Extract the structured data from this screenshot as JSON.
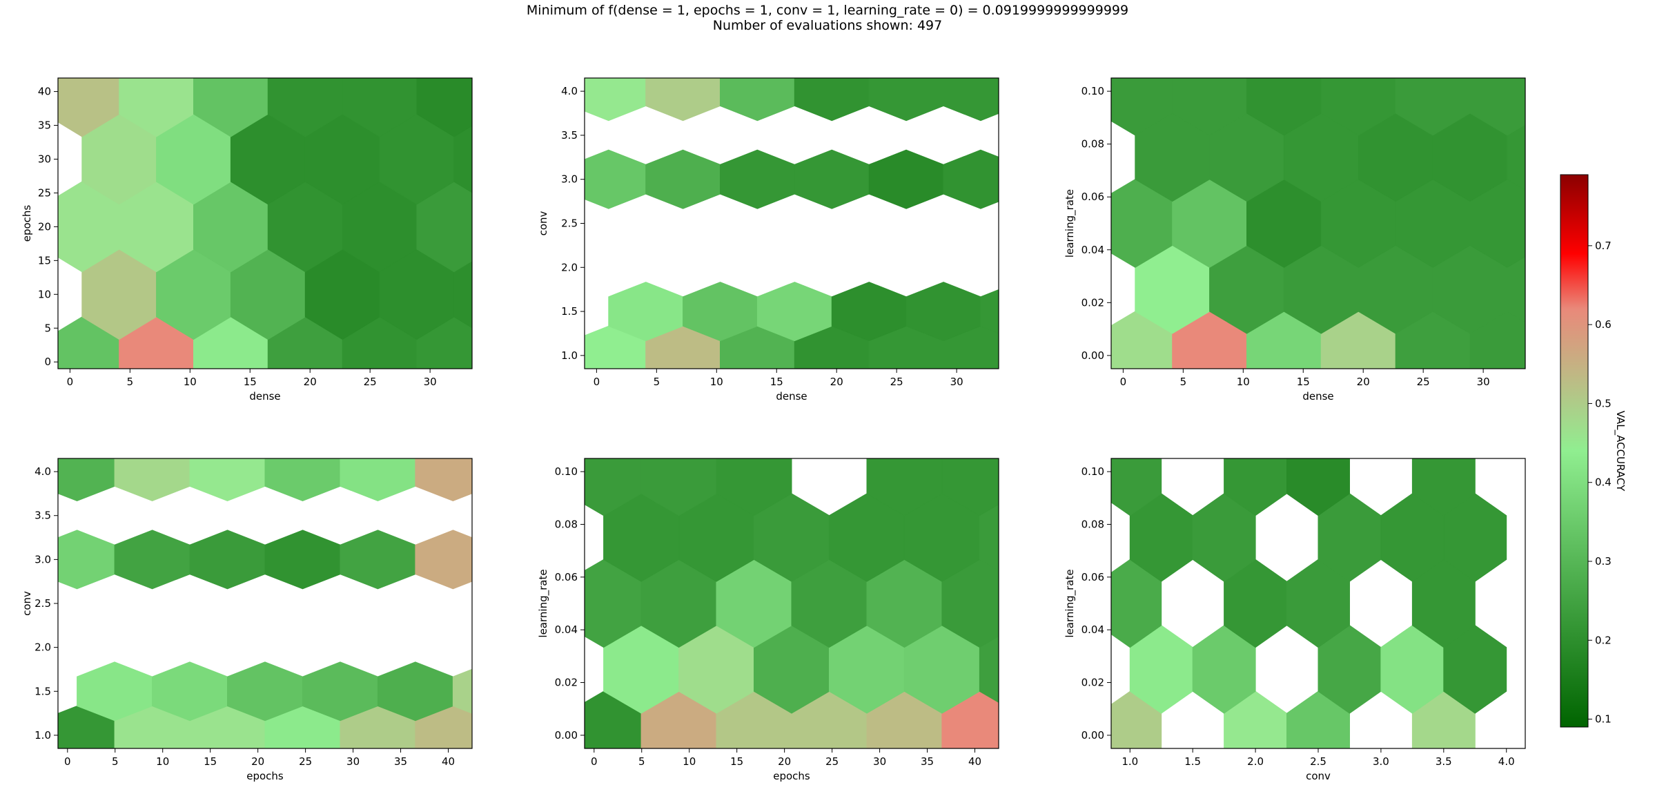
{
  "title_line1": "Minimum of f(dense = 1, epochs = 1, conv = 1, learning_rate = 0) = 0.0919999999999999",
  "title_line2": "Number of evaluations shown: 497",
  "colors": {
    "low": "#006400",
    "green_mid": "#2e9e2e",
    "light_green": "#90ee90",
    "tan": "#d2b48c",
    "salmon": "#e9897a",
    "red": "#ff0000",
    "dark_red": "#8b0000"
  },
  "colorbar": {
    "label": "VAL_ACCURACY",
    "min": 0.09,
    "max": 0.79,
    "ticks": [
      0.1,
      0.2,
      0.3,
      0.4,
      0.5,
      0.6,
      0.7
    ],
    "tick_labels": [
      "0.1",
      "0.2",
      "0.3",
      "0.4",
      "0.5",
      "0.6",
      "0.7"
    ],
    "stops": [
      [
        0.09,
        "#006400"
      ],
      [
        0.44,
        "#90ee90"
      ],
      [
        0.62,
        "#e9897a"
      ],
      [
        0.69,
        "#ff0000"
      ],
      [
        0.79,
        "#8b0000"
      ]
    ]
  },
  "chart_data": [
    {
      "type": "heatmap",
      "xlabel": "dense",
      "ylabel": "epochs",
      "xlim": [
        -1,
        33.5
      ],
      "ylim": [
        -1,
        42
      ],
      "xticks": [
        0,
        5,
        10,
        15,
        20,
        25,
        30
      ],
      "xtick_labels": [
        "0",
        "5",
        "10",
        "15",
        "20",
        "25",
        "30"
      ],
      "yticks": [
        0,
        5,
        10,
        15,
        20,
        25,
        30,
        35,
        40
      ],
      "ytick_labels": [
        "0",
        "5",
        "10",
        "15",
        "20",
        "25",
        "30",
        "35",
        "40"
      ],
      "hex_x0": 1,
      "hex_dx": 6.2,
      "hex_y0": 0,
      "hex_dy": 10,
      "row_count": 5,
      "rows": [
        [
          0.33,
          0.62,
          0.43,
          0.24,
          0.21,
          0.22
        ],
        [
          0.51,
          0.35,
          0.29,
          0.19,
          0.2,
          0.2
        ],
        [
          0.46,
          0.46,
          0.34,
          0.21,
          0.2,
          0.23
        ],
        [
          0.47,
          0.4,
          0.2,
          0.2,
          0.21,
          0.2
        ],
        [
          0.52,
          0.46,
          0.33,
          0.21,
          0.21,
          0.19
        ]
      ]
    },
    {
      "type": "heatmap",
      "xlabel": "dense",
      "ylabel": "conv",
      "xlim": [
        -1,
        33.5
      ],
      "ylim": [
        0.85,
        4.15
      ],
      "xticks": [
        0,
        5,
        10,
        15,
        20,
        25,
        30
      ],
      "xtick_labels": [
        "0",
        "5",
        "10",
        "15",
        "20",
        "25",
        "30"
      ],
      "yticks": [
        1,
        1.5,
        2,
        2.5,
        3,
        3.5,
        4
      ],
      "ytick_labels": [
        "1.0",
        "1.5",
        "2.0",
        "2.5",
        "3.0",
        "3.5",
        "4.0"
      ],
      "hex_x0": 1,
      "hex_dx": 6.2,
      "hex_y0": 1,
      "hex_dy": 0.5,
      "row_count": 7,
      "rows": [
        [
          0.44,
          0.53,
          0.29,
          0.21,
          0.22,
          0.22
        ],
        [
          0.42,
          0.33,
          0.38,
          0.2,
          0.21,
          0.22
        ],
        null,
        null,
        [
          0.34,
          0.28,
          0.22,
          0.22,
          0.19,
          0.21
        ],
        null,
        [
          0.45,
          0.5,
          0.31,
          0.21,
          0.22,
          0.22
        ]
      ]
    },
    {
      "type": "heatmap",
      "xlabel": "dense",
      "ylabel": "learning_rate",
      "xlim": [
        -1,
        33.5
      ],
      "ylim": [
        -0.005,
        0.105
      ],
      "xticks": [
        0,
        5,
        10,
        15,
        20,
        25,
        30
      ],
      "xtick_labels": [
        "0",
        "5",
        "10",
        "15",
        "20",
        "25",
        "30"
      ],
      "yticks": [
        0,
        0.02,
        0.04,
        0.06,
        0.08,
        0.1
      ],
      "ytick_labels": [
        "0.00",
        "0.02",
        "0.04",
        "0.06",
        "0.08",
        "0.10"
      ],
      "hex_x0": 1,
      "hex_dx": 6.2,
      "hex_y0": 0,
      "hex_dy": 0.025,
      "row_count": 5,
      "rows": [
        [
          0.47,
          0.62,
          0.38,
          0.49,
          0.24,
          0.23
        ],
        [
          0.44,
          0.24,
          0.23,
          0.23,
          0.23,
          0.23
        ],
        [
          0.28,
          0.33,
          0.2,
          0.22,
          0.22,
          0.22
        ],
        [
          0.23,
          0.23,
          0.22,
          0.21,
          0.21,
          0.22
        ],
        [
          0.23,
          0.23,
          0.21,
          0.22,
          0.23,
          0.23
        ]
      ]
    },
    {
      "type": "heatmap",
      "xlabel": "epochs",
      "ylabel": "conv",
      "xlim": [
        -1,
        42.5
      ],
      "ylim": [
        0.85,
        4.15
      ],
      "xticks": [
        0,
        5,
        10,
        15,
        20,
        25,
        30,
        35,
        40
      ],
      "xtick_labels": [
        "0",
        "5",
        "10",
        "15",
        "20",
        "25",
        "30",
        "35",
        "40"
      ],
      "yticks": [
        1,
        1.5,
        2,
        2.5,
        3,
        3.5,
        4
      ],
      "ytick_labels": [
        "1.0",
        "1.5",
        "2.0",
        "2.5",
        "3.0",
        "3.5",
        "4.0"
      ],
      "hex_x0": 1,
      "hex_dx": 7.9,
      "hex_y0": 1,
      "hex_dy": 0.5,
      "row_count": 7,
      "rows": [
        [
          0.22,
          0.46,
          0.46,
          0.43,
          0.5,
          0.53
        ],
        [
          0.42,
          0.39,
          0.33,
          0.31,
          0.28,
          0.49
        ],
        null,
        null,
        [
          0.37,
          0.25,
          0.23,
          0.21,
          0.25,
          0.56
        ],
        null,
        [
          0.29,
          0.48,
          0.45,
          0.35,
          0.41,
          0.56
        ]
      ]
    },
    {
      "type": "heatmap",
      "xlabel": "epochs",
      "ylabel": "learning_rate",
      "xlim": [
        -1,
        42.5
      ],
      "ylim": [
        -0.005,
        0.105
      ],
      "xticks": [
        0,
        5,
        10,
        15,
        20,
        25,
        30,
        35,
        40
      ],
      "xtick_labels": [
        "0",
        "5",
        "10",
        "15",
        "20",
        "25",
        "30",
        "35",
        "40"
      ],
      "yticks": [
        0,
        0.02,
        0.04,
        0.06,
        0.08,
        0.1
      ],
      "ytick_labels": [
        "0.00",
        "0.02",
        "0.04",
        "0.06",
        "0.08",
        "0.10"
      ],
      "hex_x0": 1,
      "hex_dx": 7.9,
      "hex_y0": 0,
      "hex_dy": 0.025,
      "row_count": 5,
      "rows": [
        [
          0.21,
          0.56,
          0.51,
          0.51,
          0.53,
          0.62
        ],
        [
          0.43,
          0.47,
          0.28,
          0.37,
          0.36,
          0.24
        ],
        [
          0.25,
          0.24,
          0.37,
          0.24,
          0.29,
          0.23
        ],
        [
          0.22,
          0.22,
          0.23,
          0.22,
          0.22,
          0.23
        ],
        [
          0.23,
          0.23,
          0.22,
          null,
          0.22,
          0.22
        ]
      ]
    },
    {
      "type": "heatmap",
      "xlabel": "conv",
      "ylabel": "learning_rate",
      "xlim": [
        0.85,
        4.15
      ],
      "ylim": [
        -0.005,
        0.105
      ],
      "xticks": [
        1,
        1.5,
        2,
        2.5,
        3,
        3.5,
        4
      ],
      "xtick_labels": [
        "1.0",
        "1.5",
        "2.0",
        "2.5",
        "3.0",
        "3.5",
        "4.0"
      ],
      "yticks": [
        0,
        0.02,
        0.04,
        0.06,
        0.08,
        0.1
      ],
      "ytick_labels": [
        "0.00",
        "0.02",
        "0.04",
        "0.06",
        "0.08",
        "0.10"
      ],
      "hex_x0": 1,
      "hex_dx": 0.5,
      "hex_y0": 0,
      "hex_dy": 0.025,
      "row_count": 5,
      "rows": [
        [
          0.5,
          null,
          0.45,
          0.34,
          null,
          0.48
        ],
        [
          0.43,
          0.35,
          null,
          0.26,
          0.41,
          0.22
        ],
        [
          0.27,
          null,
          0.22,
          0.23,
          null,
          0.22
        ],
        [
          0.22,
          0.23,
          null,
          0.23,
          0.22,
          0.22
        ],
        [
          0.23,
          null,
          0.22,
          0.19,
          null,
          0.22
        ]
      ]
    }
  ]
}
